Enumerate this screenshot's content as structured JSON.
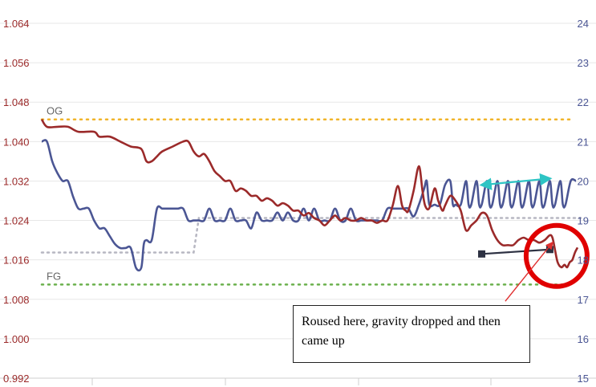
{
  "chart_data": {
    "type": "line",
    "title": "",
    "xlabel": "",
    "ylabel_left": "",
    "ylabel_right": "",
    "y_left": {
      "ticks": [
        0.992,
        1.0,
        1.008,
        1.016,
        1.024,
        1.032,
        1.04,
        1.048,
        1.056,
        1.064
      ],
      "labels": [
        "0.992",
        "1.000",
        "1.008",
        "1.016",
        "1.024",
        "1.032",
        "1.040",
        "1.048",
        "1.056",
        "1.064"
      ],
      "range": [
        0.992,
        1.064
      ],
      "color": "#9b2a2a"
    },
    "y_right": {
      "ticks": [
        15,
        16,
        17,
        18,
        19,
        20,
        21,
        22,
        23,
        24
      ],
      "labels": [
        "15",
        "16",
        "17",
        "18",
        "19",
        "20",
        "21",
        "22",
        "23",
        "24"
      ],
      "range": [
        15,
        24
      ],
      "color": "#4b5694"
    },
    "x_range": [
      0,
      100
    ],
    "grid": true,
    "reference_lines": [
      {
        "label": "OG",
        "axis": "left",
        "value": 1.0445,
        "color": "#f0b429"
      },
      {
        "label": "FG",
        "axis": "left",
        "value": 1.011,
        "color": "#6ab04c"
      }
    ],
    "series": [
      {
        "axis": "left",
        "color": "#9b2a2a",
        "points": [
          [
            0,
            1.0445
          ],
          [
            1,
            1.043
          ],
          [
            3,
            1.043
          ],
          [
            5,
            1.043
          ],
          [
            7,
            1.042
          ],
          [
            10,
            1.042
          ],
          [
            11,
            1.041
          ],
          [
            13,
            1.041
          ],
          [
            15,
            1.04
          ],
          [
            17,
            1.039
          ],
          [
            19,
            1.0385
          ],
          [
            20,
            1.036
          ],
          [
            21,
            1.036
          ],
          [
            22,
            1.037
          ],
          [
            23,
            1.038
          ],
          [
            25,
            1.039
          ],
          [
            27,
            1.04
          ],
          [
            28,
            1.04
          ],
          [
            29,
            1.038
          ],
          [
            30,
            1.037
          ],
          [
            31,
            1.0375
          ],
          [
            32,
            1.036
          ],
          [
            33,
            1.034
          ],
          [
            34,
            1.033
          ],
          [
            35,
            1.032
          ],
          [
            36,
            1.032
          ],
          [
            37,
            1.03
          ],
          [
            38,
            1.0305
          ],
          [
            39,
            1.03
          ],
          [
            40,
            1.029
          ],
          [
            41,
            1.029
          ],
          [
            42,
            1.028
          ],
          [
            43,
            1.0285
          ],
          [
            44,
            1.028
          ],
          [
            45,
            1.027
          ],
          [
            46,
            1.0275
          ],
          [
            47,
            1.027
          ],
          [
            48,
            1.026
          ],
          [
            49,
            1.026
          ],
          [
            50,
            1.025
          ],
          [
            51,
            1.0255
          ],
          [
            52,
            1.0245
          ],
          [
            53,
            1.024
          ],
          [
            54,
            1.023
          ],
          [
            55,
            1.024
          ],
          [
            56,
            1.025
          ],
          [
            57,
            1.024
          ],
          [
            58,
            1.0245
          ],
          [
            59,
            1.024
          ],
          [
            60,
            1.024
          ],
          [
            61,
            1.0245
          ],
          [
            62,
            1.024
          ],
          [
            63,
            1.024
          ],
          [
            64,
            1.0235
          ],
          [
            65,
            1.024
          ],
          [
            66,
            1.024
          ],
          [
            67,
            1.027
          ],
          [
            68,
            1.031
          ],
          [
            68.8,
            1.027
          ],
          [
            69.5,
            1.026
          ],
          [
            70,
            1.026
          ],
          [
            71,
            1.03
          ],
          [
            72,
            1.035
          ],
          [
            72.7,
            1.03
          ],
          [
            73.2,
            1.027
          ],
          [
            74,
            1.0265
          ],
          [
            75,
            1.0305
          ],
          [
            75.7,
            1.028
          ],
          [
            76.5,
            1.026
          ],
          [
            77,
            1.027
          ],
          [
            78,
            1.029
          ],
          [
            79,
            1.028
          ],
          [
            80,
            1.026
          ],
          [
            81,
            1.022
          ],
          [
            82,
            1.023
          ],
          [
            83,
            1.024
          ],
          [
            84,
            1.0255
          ],
          [
            85,
            1.025
          ],
          [
            86,
            1.022
          ],
          [
            87,
            1.02
          ],
          [
            88,
            1.019
          ],
          [
            89,
            1.019
          ],
          [
            90,
            1.019
          ],
          [
            91,
            1.02
          ],
          [
            92,
            1.0205
          ],
          [
            93,
            1.02
          ],
          [
            94,
            1.02
          ],
          [
            95,
            1.0195
          ],
          [
            96,
            1.02
          ],
          [
            97,
            1.021
          ],
          [
            97.5,
            1.0205
          ],
          [
            98,
            1.018
          ],
          [
            98.5,
            1.0155
          ],
          [
            99.2,
            1.0145
          ],
          [
            99.8,
            1.015
          ],
          [
            100.3,
            1.0145
          ],
          [
            100.8,
            1.0155
          ],
          [
            101.3,
            1.016
          ],
          [
            101.8,
            1.0175
          ],
          [
            102.3,
            1.0185
          ]
        ]
      },
      {
        "axis": "right",
        "color": "#4b5694",
        "points": [
          [
            0,
            21
          ],
          [
            1,
            21
          ],
          [
            2,
            20.5
          ],
          [
            3,
            20.2
          ],
          [
            4,
            20
          ],
          [
            5,
            20
          ],
          [
            6,
            19.6
          ],
          [
            7,
            19.3
          ],
          [
            8,
            19.3
          ],
          [
            9,
            19.3
          ],
          [
            10,
            19
          ],
          [
            11,
            18.8
          ],
          [
            12,
            18.8
          ],
          [
            13,
            18.6
          ],
          [
            14,
            18.4
          ],
          [
            15,
            18.3
          ],
          [
            16,
            18.3
          ],
          [
            17,
            18.3
          ],
          [
            18,
            17.8
          ],
          [
            19,
            17.8
          ],
          [
            19.5,
            18.4
          ],
          [
            20,
            18.5
          ],
          [
            21,
            18.5
          ],
          [
            22,
            19.3
          ],
          [
            23,
            19.3
          ],
          [
            24,
            19.3
          ],
          [
            25,
            19.3
          ],
          [
            26,
            19.3
          ],
          [
            27,
            19.3
          ],
          [
            28,
            19
          ],
          [
            29,
            19
          ],
          [
            30,
            19
          ],
          [
            31,
            19
          ],
          [
            32,
            19.3
          ],
          [
            33,
            19
          ],
          [
            34,
            19
          ],
          [
            35,
            19
          ],
          [
            36,
            19.3
          ],
          [
            37,
            19
          ],
          [
            38,
            19
          ],
          [
            39,
            19
          ],
          [
            40,
            18.8
          ],
          [
            41,
            19.2
          ],
          [
            42,
            19
          ],
          [
            43,
            19
          ],
          [
            44,
            19
          ],
          [
            45,
            19.2
          ],
          [
            46,
            19
          ],
          [
            47,
            19.2
          ],
          [
            48,
            19
          ],
          [
            49,
            19
          ],
          [
            50,
            19.3
          ],
          [
            51,
            19
          ],
          [
            52,
            19.3
          ],
          [
            53,
            19
          ],
          [
            54,
            19
          ],
          [
            55,
            19
          ],
          [
            56,
            19.3
          ],
          [
            57,
            19
          ],
          [
            58,
            19
          ],
          [
            59,
            19.3
          ],
          [
            60,
            19
          ],
          [
            61,
            19
          ],
          [
            62,
            19
          ],
          [
            63,
            19
          ],
          [
            64,
            19
          ],
          [
            65,
            19
          ],
          [
            66,
            19.3
          ],
          [
            67,
            19.3
          ],
          [
            68,
            19.3
          ],
          [
            69,
            19.3
          ],
          [
            70,
            19.3
          ],
          [
            71,
            19.1
          ],
          [
            72,
            19.4
          ],
          [
            73,
            19.8
          ],
          [
            73.5,
            20.0
          ],
          [
            74,
            19.4
          ],
          [
            75,
            19.4
          ],
          [
            76,
            19.4
          ],
          [
            77,
            19.9
          ],
          [
            78,
            20
          ],
          [
            78.5,
            19.4
          ],
          [
            79,
            19.4
          ],
          [
            80,
            19.4
          ],
          [
            81,
            20
          ],
          [
            81.5,
            19.4
          ],
          [
            82,
            19.4
          ],
          [
            83,
            20
          ],
          [
            83.5,
            19.4
          ],
          [
            84,
            19.4
          ],
          [
            85,
            20
          ],
          [
            85.5,
            19.4
          ],
          [
            86,
            19.4
          ],
          [
            87,
            20
          ],
          [
            87.5,
            19.4
          ],
          [
            88,
            19.4
          ],
          [
            89,
            20
          ],
          [
            89.5,
            19.4
          ],
          [
            90,
            19.4
          ],
          [
            91,
            20
          ],
          [
            91.5,
            19.4
          ],
          [
            92,
            19.4
          ],
          [
            93,
            20
          ],
          [
            93.5,
            19.4
          ],
          [
            94,
            19.4
          ],
          [
            95,
            20
          ],
          [
            95.5,
            19.4
          ],
          [
            96,
            19.4
          ],
          [
            97,
            20
          ],
          [
            97.5,
            19.4
          ],
          [
            98,
            19.4
          ],
          [
            99,
            20
          ],
          [
            99.5,
            19.4
          ],
          [
            100,
            19.4
          ],
          [
            101,
            20
          ],
          [
            102,
            20
          ]
        ]
      },
      {
        "axis": "left",
        "color": "#b7b7c2",
        "dashed": true,
        "points": [
          [
            0,
            1.0175
          ],
          [
            29,
            1.0175
          ],
          [
            30,
            1.0245
          ],
          [
            103,
            1.0245
          ]
        ]
      }
    ],
    "annotations": [
      {
        "type": "arrow-segment",
        "color": "#2ec4c4",
        "axis": "left",
        "from": [
          84,
          1.0312
        ],
        "to": [
          97,
          1.0325
        ]
      },
      {
        "type": "marker-segment",
        "color": "#2d3142",
        "axis": "left",
        "from": [
          84,
          1.0172
        ],
        "to": [
          97,
          1.0181
        ]
      },
      {
        "type": "circle",
        "color": "#e00000",
        "axis": "left",
        "center": [
          98.3,
          1.0168
        ]
      },
      {
        "type": "arrow",
        "color": "#e03030",
        "axis": "left",
        "from": [
          88.5,
          1.0076
        ],
        "to": [
          97.5,
          1.0195
        ]
      },
      {
        "type": "note",
        "text": "Roused here, gravity dropped and then came up"
      }
    ]
  }
}
